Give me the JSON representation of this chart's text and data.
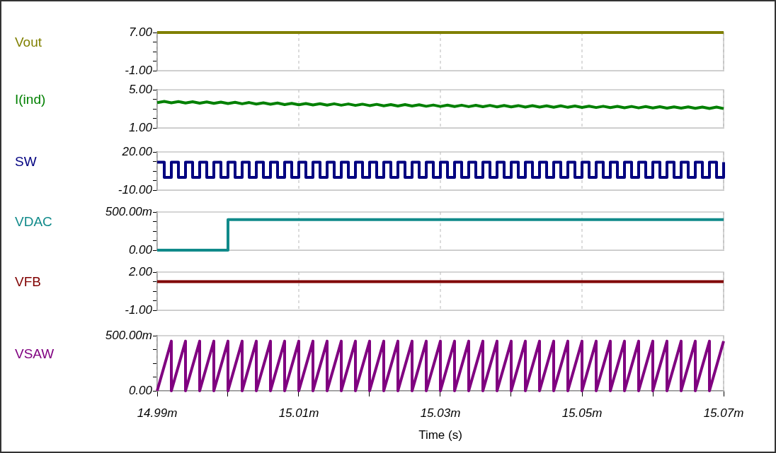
{
  "chart_data": [
    {
      "type": "line",
      "x": [
        14.99,
        15.07
      ],
      "xlim": [
        14.99,
        15.07
      ],
      "xticks": [
        14.99,
        15.01,
        15.03,
        15.05,
        15.07
      ],
      "ylim": [
        -1,
        7
      ],
      "yticks": [
        {
          "value": -1,
          "label": "-1.00"
        },
        {
          "value": 1,
          "label": null
        },
        {
          "value": 3,
          "label": null
        },
        {
          "value": 5,
          "label": null
        },
        {
          "value": 7,
          "label": "7.00"
        }
      ],
      "grid": "x",
      "tick_labels": "y",
      "legend": false,
      "series": [
        {
          "name": "Vout",
          "color": "#808000",
          "values": [
            7,
            7
          ]
        }
      ]
    },
    {
      "type": "line",
      "x": [
        14.99,
        14.991,
        14.992,
        14.993,
        14.994,
        14.995,
        14.996,
        14.997,
        14.998,
        14.999,
        15,
        15.001,
        15.002,
        15.003,
        15.004,
        15.005,
        15.006,
        15.007,
        15.008,
        15.009,
        15.01,
        15.011,
        15.012,
        15.013,
        15.014,
        15.015,
        15.016,
        15.017,
        15.018,
        15.019,
        15.02,
        15.021,
        15.022,
        15.023,
        15.024,
        15.025,
        15.026,
        15.027,
        15.028,
        15.029,
        15.03,
        15.031,
        15.032,
        15.033,
        15.034,
        15.035,
        15.036,
        15.037,
        15.038,
        15.039,
        15.04,
        15.041,
        15.042,
        15.043,
        15.044,
        15.045,
        15.046,
        15.047,
        15.048,
        15.049,
        15.05,
        15.051,
        15.052,
        15.053,
        15.054,
        15.055,
        15.056,
        15.057,
        15.058,
        15.059,
        15.06,
        15.061,
        15.062,
        15.063,
        15.064,
        15.065,
        15.066,
        15.067,
        15.068,
        15.069,
        15.07
      ],
      "xlim": [
        14.99,
        15.07
      ],
      "xticks": [
        14.99,
        15.01,
        15.03,
        15.05,
        15.07
      ],
      "ylim": [
        1,
        5
      ],
      "yticks": [
        {
          "value": 1,
          "label": "1.00"
        },
        {
          "value": 2,
          "label": null
        },
        {
          "value": 3,
          "label": null
        },
        {
          "value": 4,
          "label": null
        },
        {
          "value": 5,
          "label": "5.00"
        }
      ],
      "grid": "x",
      "tick_labels": "y",
      "legend": false,
      "series": [
        {
          "name": "I(ind)",
          "color": "#008000",
          "values": [
            3.65,
            3.78,
            3.63,
            3.76,
            3.61,
            3.74,
            3.59,
            3.72,
            3.57,
            3.7,
            3.55,
            3.68,
            3.53,
            3.66,
            3.5,
            3.63,
            3.48,
            3.61,
            3.45,
            3.58,
            3.43,
            3.56,
            3.41,
            3.54,
            3.39,
            3.53,
            3.38,
            3.51,
            3.36,
            3.49,
            3.34,
            3.47,
            3.32,
            3.45,
            3.3,
            3.44,
            3.29,
            3.42,
            3.27,
            3.4,
            3.25,
            3.39,
            3.24,
            3.38,
            3.23,
            3.37,
            3.22,
            3.36,
            3.21,
            3.35,
            3.2,
            3.34,
            3.19,
            3.33,
            3.18,
            3.32,
            3.17,
            3.31,
            3.16,
            3.3,
            3.15,
            3.28,
            3.14,
            3.27,
            3.13,
            3.26,
            3.11,
            3.25,
            3.1,
            3.24,
            3.09,
            3.22,
            3.08,
            3.21,
            3.07,
            3.2,
            3.05,
            3.19,
            3.04,
            3.18,
            3.03
          ]
        }
      ]
    },
    {
      "type": "step",
      "x": [
        14.99,
        14.991,
        14.992,
        14.993,
        14.994,
        14.995,
        14.996,
        14.997,
        14.998,
        14.999,
        15,
        15.001,
        15.002,
        15.003,
        15.004,
        15.005,
        15.006,
        15.007,
        15.008,
        15.009,
        15.01,
        15.011,
        15.012,
        15.013,
        15.014,
        15.015,
        15.016,
        15.017,
        15.018,
        15.019,
        15.02,
        15.021,
        15.022,
        15.023,
        15.024,
        15.025,
        15.026,
        15.027,
        15.028,
        15.029,
        15.03,
        15.031,
        15.032,
        15.033,
        15.034,
        15.035,
        15.036,
        15.037,
        15.038,
        15.039,
        15.04,
        15.041,
        15.042,
        15.043,
        15.044,
        15.045,
        15.046,
        15.047,
        15.048,
        15.049,
        15.05,
        15.051,
        15.052,
        15.053,
        15.054,
        15.055,
        15.056,
        15.057,
        15.058,
        15.059,
        15.06,
        15.061,
        15.062,
        15.063,
        15.064,
        15.065,
        15.066,
        15.067,
        15.068,
        15.069,
        15.07
      ],
      "xlim": [
        14.99,
        15.07
      ],
      "xticks": [
        14.99,
        15.01,
        15.03,
        15.05,
        15.07
      ],
      "ylim": [
        -10,
        20
      ],
      "yticks": [
        {
          "value": -10,
          "label": "-10.00"
        },
        {
          "value": -2.5,
          "label": null
        },
        {
          "value": 5,
          "label": null
        },
        {
          "value": 12.5,
          "label": null
        },
        {
          "value": 20,
          "label": "20.00"
        }
      ],
      "grid": "x",
      "tick_labels": "y",
      "legend": false,
      "series": [
        {
          "name": "SW",
          "color": "#000080",
          "values": [
            12,
            0,
            12,
            0,
            12,
            0,
            12,
            0,
            12,
            0,
            12,
            0,
            12,
            0,
            12,
            0,
            12,
            0,
            12,
            0,
            12,
            0,
            12,
            0,
            12,
            0,
            12,
            0,
            12,
            0,
            12,
            0,
            12,
            0,
            12,
            0,
            12,
            0,
            12,
            0,
            12,
            0,
            12,
            0,
            12,
            0,
            12,
            0,
            12,
            0,
            12,
            0,
            12,
            0,
            12,
            0,
            12,
            0,
            12,
            0,
            12,
            0,
            12,
            0,
            12,
            0,
            12,
            0,
            12,
            0,
            12,
            0,
            12,
            0,
            12,
            0,
            12,
            0,
            12,
            0,
            12
          ]
        }
      ]
    },
    {
      "type": "step",
      "x": [
        14.99,
        15,
        15.07
      ],
      "xlim": [
        14.99,
        15.07
      ],
      "xticks": [
        14.99,
        15.01,
        15.03,
        15.05,
        15.07
      ],
      "ylim": [
        0,
        500
      ],
      "yticks": [
        {
          "value": 0,
          "label": "0.00"
        },
        {
          "value": 125,
          "label": null
        },
        {
          "value": 250,
          "label": null
        },
        {
          "value": 375,
          "label": null
        },
        {
          "value": 500,
          "label": "500.00m"
        }
      ],
      "grid": "x",
      "tick_labels": "y",
      "legend": false,
      "series": [
        {
          "name": "VDAC",
          "color": "#108a8a",
          "values": [
            0,
            400,
            400
          ]
        }
      ]
    },
    {
      "type": "line",
      "x": [
        14.99,
        15.07
      ],
      "xlim": [
        14.99,
        15.07
      ],
      "xticks": [
        14.99,
        15.01,
        15.03,
        15.05,
        15.07
      ],
      "ylim": [
        -1,
        2
      ],
      "yticks": [
        {
          "value": -1,
          "label": "-1.00"
        },
        {
          "value": -0.25,
          "label": null
        },
        {
          "value": 0.5,
          "label": null
        },
        {
          "value": 1.25,
          "label": null
        },
        {
          "value": 2,
          "label": "2.00"
        }
      ],
      "grid": "x",
      "tick_labels": "y",
      "legend": false,
      "series": [
        {
          "name": "VFB",
          "color": "#800000",
          "values": [
            1.25,
            1.25
          ]
        }
      ]
    },
    {
      "type": "line",
      "x": [
        14.99,
        14.992,
        14.992,
        14.994,
        14.994,
        14.996,
        14.996,
        14.998,
        14.998,
        15,
        15,
        15.002,
        15.002,
        15.004,
        15.004,
        15.006,
        15.006,
        15.008,
        15.008,
        15.01,
        15.01,
        15.012,
        15.012,
        15.014,
        15.014,
        15.016,
        15.016,
        15.018,
        15.018,
        15.02,
        15.02,
        15.022,
        15.022,
        15.024,
        15.024,
        15.026,
        15.026,
        15.028,
        15.028,
        15.03,
        15.03,
        15.032,
        15.032,
        15.034,
        15.034,
        15.036,
        15.036,
        15.038,
        15.038,
        15.04,
        15.04,
        15.042,
        15.042,
        15.044,
        15.044,
        15.046,
        15.046,
        15.048,
        15.048,
        15.05,
        15.05,
        15.052,
        15.052,
        15.054,
        15.054,
        15.056,
        15.056,
        15.058,
        15.058,
        15.06,
        15.06,
        15.062,
        15.062,
        15.064,
        15.064,
        15.066,
        15.066,
        15.068,
        15.068,
        15.07
      ],
      "xlim": [
        14.99,
        15.07
      ],
      "xticks": [
        {
          "value": 14.99,
          "label": "14.99m"
        },
        {
          "value": 15,
          "label": null
        },
        {
          "value": 15.01,
          "label": "15.01m"
        },
        {
          "value": 15.02,
          "label": null
        },
        {
          "value": 15.03,
          "label": "15.03m"
        },
        {
          "value": 15.04,
          "label": null
        },
        {
          "value": 15.05,
          "label": "15.05m"
        },
        {
          "value": 15.06,
          "label": null
        },
        {
          "value": 15.07,
          "label": "15.07m"
        }
      ],
      "ylim": [
        0,
        500
      ],
      "yticks": [
        {
          "value": 0,
          "label": "0.00"
        },
        {
          "value": 125,
          "label": null
        },
        {
          "value": 250,
          "label": null
        },
        {
          "value": 375,
          "label": null
        },
        {
          "value": 500,
          "label": "500.00m"
        }
      ],
      "grid": "x",
      "legend": false,
      "xlabel": "Time (s)",
      "series": [
        {
          "name": "VSAW",
          "color": "#800080",
          "values": [
            0,
            450,
            0,
            450,
            0,
            450,
            0,
            450,
            0,
            450,
            0,
            450,
            0,
            450,
            0,
            450,
            0,
            450,
            0,
            450,
            0,
            450,
            0,
            450,
            0,
            450,
            0,
            450,
            0,
            450,
            0,
            450,
            0,
            450,
            0,
            450,
            0,
            450,
            0,
            450,
            0,
            450,
            0,
            450,
            0,
            450,
            0,
            450,
            0,
            450,
            0,
            450,
            0,
            450,
            0,
            450,
            0,
            450,
            0,
            450,
            0,
            450,
            0,
            450,
            0,
            450,
            0,
            450,
            0,
            450,
            0,
            450,
            0,
            450,
            0,
            450,
            0,
            450,
            0,
            450
          ]
        }
      ]
    }
  ]
}
